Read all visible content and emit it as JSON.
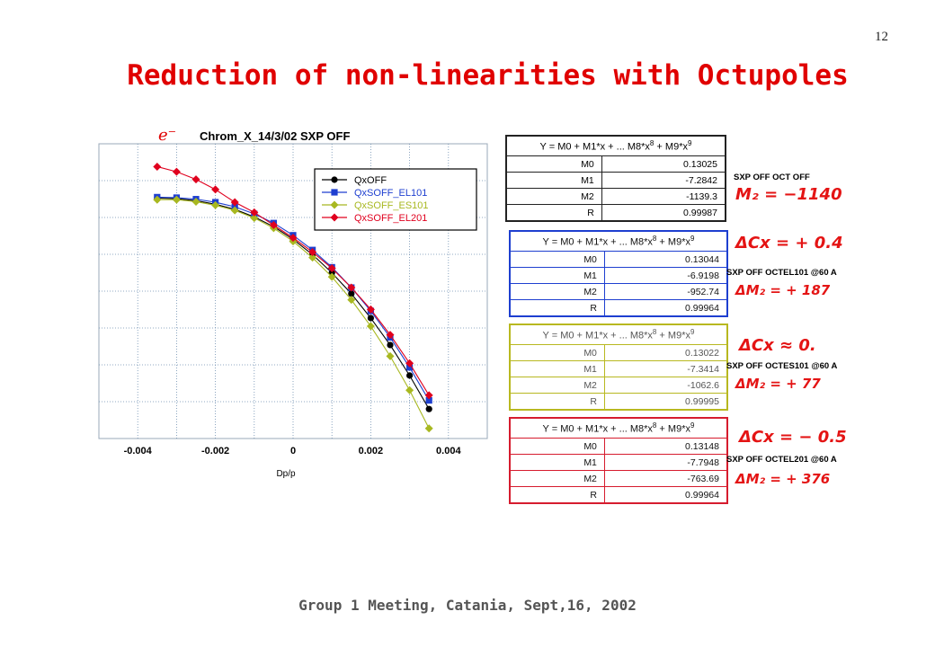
{
  "slide_number": "12",
  "title": "Reduction of non-linearities with Octupoles",
  "footer": "Group 1 Meeting, Catania, Sept,16, 2002",
  "chart_mark": "e⁻",
  "chart_data": {
    "type": "line",
    "title": "Chrom_X_14/3/02 SXP OFF",
    "xlabel": "Dp/p",
    "ylabel": "",
    "xlim": [
      -0.005,
      0.005
    ],
    "xticks": [
      "-0.004",
      "-0.002",
      "0",
      "0.002",
      "0.004"
    ],
    "grid": true,
    "legend_position": "top-right",
    "colors": [
      "#000000",
      "#1e3fd0",
      "#a8b820",
      "#e0001e"
    ],
    "series": [
      {
        "name": "QxOFF",
        "marker": "circle",
        "x": [
          -0.0035,
          -0.003,
          -0.0025,
          -0.002,
          -0.0015,
          -0.001,
          -0.0005,
          0,
          0.0005,
          0.001,
          0.0015,
          0.002,
          0.0025,
          0.003,
          0.0035
        ],
        "y": [
          0.1313,
          0.1312,
          0.1308,
          0.1301,
          0.1291,
          0.1276,
          0.1257,
          0.1232,
          0.1202,
          0.1166,
          0.1125,
          0.1077,
          0.1024,
          0.0964,
          0.0898
        ]
      },
      {
        "name": "QxSOFF_EL101",
        "marker": "square",
        "x": [
          -0.0035,
          -0.003,
          -0.0025,
          -0.002,
          -0.0015,
          -0.001,
          -0.0005,
          0,
          0.0005,
          0.001,
          0.0015,
          0.002,
          0.0025,
          0.003,
          0.0035
        ],
        "y": [
          0.1315,
          0.1314,
          0.1311,
          0.1305,
          0.1296,
          0.1282,
          0.1264,
          0.124,
          0.1211,
          0.1177,
          0.1137,
          0.1091,
          0.1039,
          0.098,
          0.0915
        ]
      },
      {
        "name": "QxSOFF_ES101",
        "marker": "diamond",
        "x": [
          -0.0035,
          -0.003,
          -0.0025,
          -0.002,
          -0.0015,
          -0.001,
          -0.0005,
          0,
          0.0005,
          0.001,
          0.0015,
          0.002,
          0.0025,
          0.003,
          0.0035
        ],
        "y": [
          0.131,
          0.131,
          0.1306,
          0.1299,
          0.1289,
          0.1274,
          0.1254,
          0.1228,
          0.1196,
          0.1158,
          0.1113,
          0.1061,
          0.1002,
          0.0935,
          0.086
        ]
      },
      {
        "name": "QxSOFF_EL201",
        "marker": "diamond",
        "x": [
          -0.0035,
          -0.003,
          -0.0025,
          -0.002,
          -0.0015,
          -0.001,
          -0.0005,
          0,
          0.0005,
          0.001,
          0.0015,
          0.002,
          0.0025,
          0.003,
          0.0035
        ],
        "y": [
          0.1375,
          0.1365,
          0.135,
          0.133,
          0.1305,
          0.1285,
          0.126,
          0.1235,
          0.1207,
          0.1175,
          0.1137,
          0.1094,
          0.1044,
          0.0988,
          0.0925
        ]
      }
    ]
  },
  "fit_tables": [
    {
      "header": "Y = M0 + M1*x + ... M8*x⁸ + M9*x⁹",
      "rows": [
        {
          "label": "M0",
          "value": "0.13025"
        },
        {
          "label": "M1",
          "value": "-7.2842"
        },
        {
          "label": "M2",
          "value": "-1139.3"
        },
        {
          "label": "R",
          "value": "0.99987"
        }
      ],
      "side_label": "SXP OFF OCT OFF",
      "note_top": "",
      "note_bottom": "M₂ = −1140"
    },
    {
      "header": "Y = M0 + M1*x + ... M8*x⁸ + M9*x⁹",
      "rows": [
        {
          "label": "M0",
          "value": "0.13044"
        },
        {
          "label": "M1",
          "value": "-6.9198"
        },
        {
          "label": "M2",
          "value": "-952.74"
        },
        {
          "label": "R",
          "value": "0.99964"
        }
      ],
      "side_label": "SXP OFF OCTEL101 @60 A",
      "note_top": "ΔCx = + 0.4",
      "note_bottom": "ΔM₂ = + 187"
    },
    {
      "header": "Y = M0 + M1*x + ... M8*x⁸ + M9*x⁹",
      "rows": [
        {
          "label": "M0",
          "value": "0.13022"
        },
        {
          "label": "M1",
          "value": "-7.3414"
        },
        {
          "label": "M2",
          "value": "-1062.6"
        },
        {
          "label": "R",
          "value": "0.99995"
        }
      ],
      "side_label": "SXP OFF OCTES101 @60 A",
      "note_top": "ΔCx ≈ 0.",
      "note_bottom": "ΔM₂ = + 77"
    },
    {
      "header": "Y = M0 + M1*x + ... M8*x⁸ + M9*x⁹",
      "rows": [
        {
          "label": "M0",
          "value": "0.13148"
        },
        {
          "label": "M1",
          "value": "-7.7948"
        },
        {
          "label": "M2",
          "value": "-763.69"
        },
        {
          "label": "R",
          "value": "0.99964"
        }
      ],
      "side_label": "SXP OFF OCTEL201 @60 A",
      "note_top": "ΔCx = − 0.5",
      "note_bottom": "ΔM₂ = + 376"
    }
  ]
}
